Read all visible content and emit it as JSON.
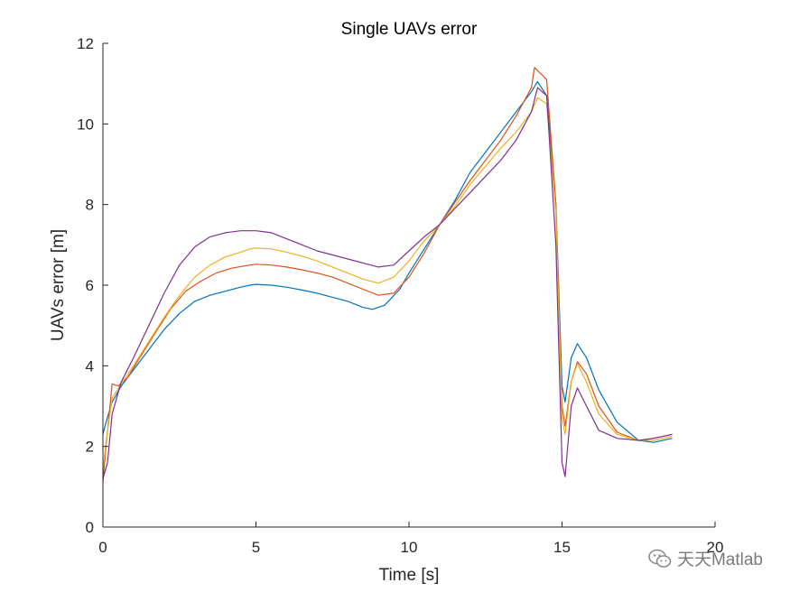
{
  "chart_data": {
    "type": "line",
    "title": "Single UAVs error",
    "xlabel": "Time [s]",
    "ylabel": "UAVs error [m]",
    "xlim": [
      0,
      20
    ],
    "ylim": [
      0,
      12
    ],
    "xticks": [
      0,
      5,
      10,
      15,
      20
    ],
    "yticks": [
      0,
      2,
      4,
      6,
      8,
      10,
      12
    ],
    "grid": false,
    "legend": false,
    "series": [
      {
        "color": "#0072BD",
        "x": [
          0,
          0.1,
          0.3,
          0.6,
          1.0,
          1.5,
          2.0,
          2.5,
          3.0,
          3.5,
          4.0,
          4.5,
          4.8,
          5.0,
          5.5,
          6.0,
          6.5,
          7.0,
          7.5,
          8.0,
          8.5,
          8.8,
          9.2,
          9.7,
          10.0,
          10.5,
          11.0,
          11.5,
          12.0,
          12.5,
          13.0,
          13.5,
          14.0,
          14.2,
          14.5,
          14.8,
          15.0,
          15.1,
          15.3,
          15.5,
          15.8,
          16.2,
          16.8,
          17.5,
          18.0,
          18.6
        ],
        "y": [
          2.3,
          2.6,
          3.1,
          3.5,
          3.9,
          4.4,
          4.9,
          5.3,
          5.6,
          5.75,
          5.85,
          5.95,
          6.0,
          6.02,
          6.0,
          5.95,
          5.88,
          5.8,
          5.7,
          5.6,
          5.45,
          5.4,
          5.5,
          5.9,
          6.3,
          6.9,
          7.5,
          8.1,
          8.8,
          9.3,
          9.8,
          10.3,
          10.8,
          11.05,
          10.7,
          8.0,
          3.5,
          3.1,
          4.2,
          4.55,
          4.2,
          3.4,
          2.6,
          2.15,
          2.1,
          2.2
        ]
      },
      {
        "color": "#D95319",
        "x": [
          0,
          0.1,
          0.3,
          0.5,
          0.8,
          1.2,
          1.7,
          2.2,
          2.7,
          3.2,
          3.7,
          4.2,
          4.8,
          5.0,
          5.5,
          6.0,
          6.5,
          7.0,
          7.5,
          8.0,
          8.5,
          9.0,
          9.5,
          10.0,
          10.5,
          11.0,
          11.5,
          12.0,
          12.5,
          13.0,
          13.5,
          14.0,
          14.1,
          14.5,
          14.8,
          15.0,
          15.1,
          15.3,
          15.5,
          15.8,
          16.2,
          16.8,
          17.5,
          18.0,
          18.6
        ],
        "y": [
          1.1,
          2.0,
          3.55,
          3.5,
          3.7,
          4.2,
          4.8,
          5.4,
          5.85,
          6.1,
          6.3,
          6.42,
          6.5,
          6.52,
          6.5,
          6.45,
          6.38,
          6.3,
          6.2,
          6.05,
          5.9,
          5.75,
          5.8,
          6.2,
          6.8,
          7.5,
          8.05,
          8.6,
          9.1,
          9.6,
          10.2,
          10.9,
          11.4,
          11.1,
          8.0,
          3.0,
          2.5,
          3.6,
          4.1,
          3.8,
          3.0,
          2.35,
          2.15,
          2.2,
          2.3
        ]
      },
      {
        "color": "#EDB120",
        "x": [
          0,
          0.1,
          0.3,
          0.6,
          1.0,
          1.5,
          2.0,
          2.5,
          3.0,
          3.5,
          4.0,
          4.5,
          4.8,
          5.0,
          5.5,
          6.0,
          6.5,
          7.0,
          7.5,
          8.0,
          8.5,
          9.0,
          9.5,
          10.0,
          10.5,
          11.0,
          11.5,
          12.0,
          12.5,
          13.0,
          13.5,
          14.0,
          14.2,
          14.5,
          14.8,
          15.0,
          15.1,
          15.3,
          15.5,
          15.8,
          16.2,
          16.8,
          17.5,
          18.0,
          18.6
        ],
        "y": [
          1.4,
          2.1,
          3.2,
          3.55,
          4.0,
          4.6,
          5.2,
          5.75,
          6.2,
          6.5,
          6.7,
          6.82,
          6.9,
          6.92,
          6.9,
          6.82,
          6.72,
          6.6,
          6.45,
          6.3,
          6.15,
          6.05,
          6.2,
          6.6,
          7.1,
          7.5,
          7.95,
          8.5,
          8.95,
          9.4,
          9.8,
          10.3,
          10.65,
          10.5,
          7.8,
          2.7,
          2.3,
          3.6,
          4.05,
          3.6,
          2.8,
          2.3,
          2.15,
          2.15,
          2.25
        ]
      },
      {
        "color": "#7E2F8E",
        "x": [
          0,
          0.15,
          0.3,
          0.6,
          1.0,
          1.5,
          2.0,
          2.5,
          3.0,
          3.5,
          4.0,
          4.5,
          5.0,
          5.3,
          5.5,
          6.0,
          6.5,
          7.0,
          7.5,
          8.0,
          8.5,
          9.0,
          9.5,
          10.0,
          10.5,
          11.0,
          11.5,
          12.0,
          12.5,
          13.0,
          13.5,
          14.0,
          14.2,
          14.5,
          14.8,
          15.0,
          15.1,
          15.3,
          15.5,
          15.8,
          16.2,
          16.8,
          17.5,
          18.0,
          18.6
        ],
        "y": [
          1.2,
          1.6,
          2.8,
          3.6,
          4.2,
          5.0,
          5.8,
          6.5,
          6.95,
          7.2,
          7.3,
          7.35,
          7.35,
          7.32,
          7.3,
          7.15,
          7.0,
          6.85,
          6.75,
          6.65,
          6.55,
          6.45,
          6.5,
          6.85,
          7.2,
          7.5,
          7.9,
          8.3,
          8.7,
          9.1,
          9.6,
          10.3,
          10.9,
          10.7,
          7.0,
          1.6,
          1.25,
          3.0,
          3.45,
          3.0,
          2.4,
          2.2,
          2.15,
          2.2,
          2.3
        ]
      }
    ]
  },
  "watermark": {
    "text": "天天Matlab",
    "icon": "wechat-icon"
  }
}
